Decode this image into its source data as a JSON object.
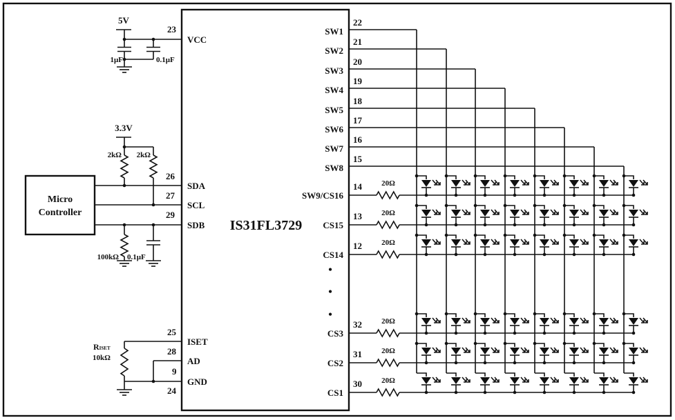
{
  "chip": {
    "name": "IS31FL3729",
    "left_pins": [
      {
        "label": "VCC",
        "pin": "23"
      },
      {
        "label": "SDA",
        "pin": "26"
      },
      {
        "label": "SCL",
        "pin": "27"
      },
      {
        "label": "SDB",
        "pin": "29"
      },
      {
        "label": "ISET",
        "pin": "25"
      },
      {
        "label": "AD",
        "pin": "28"
      },
      {
        "label": "GND",
        "pin": "9"
      },
      {
        "label": "",
        "pin": "24"
      }
    ],
    "sw_pins": [
      {
        "label": "SW1",
        "pin": "22"
      },
      {
        "label": "SW2",
        "pin": "21"
      },
      {
        "label": "SW3",
        "pin": "20"
      },
      {
        "label": "SW4",
        "pin": "19"
      },
      {
        "label": "SW5",
        "pin": "18"
      },
      {
        "label": "SW6",
        "pin": "17"
      },
      {
        "label": "SW7",
        "pin": "16"
      },
      {
        "label": "SW8",
        "pin": "15"
      }
    ],
    "cs_pins": [
      {
        "label": "SW9/CS16",
        "pin": "14",
        "resistor": "20Ω"
      },
      {
        "label": "CS15",
        "pin": "13",
        "resistor": "20Ω"
      },
      {
        "label": "CS14",
        "pin": "12",
        "resistor": "20Ω"
      },
      {
        "label": "CS3",
        "pin": "32",
        "resistor": "20Ω"
      },
      {
        "label": "CS2",
        "pin": "31",
        "resistor": "20Ω"
      },
      {
        "label": "CS1",
        "pin": "30",
        "resistor": "20Ω"
      }
    ],
    "ellipsis": "•"
  },
  "supply": {
    "vcc": "5V",
    "c1": "1μF",
    "c2": "0.1μF",
    "logic": "3.3V",
    "r_pullup1": "2kΩ",
    "r_pullup2": "2kΩ",
    "r_sdb": "100kΩ",
    "c_sdb": "0.1μF",
    "r_iset_main": "R",
    "r_iset_sub": "ISET",
    "r_iset_value": "10kΩ"
  },
  "mcu": {
    "line1": "Micro",
    "line2": "Controller"
  }
}
